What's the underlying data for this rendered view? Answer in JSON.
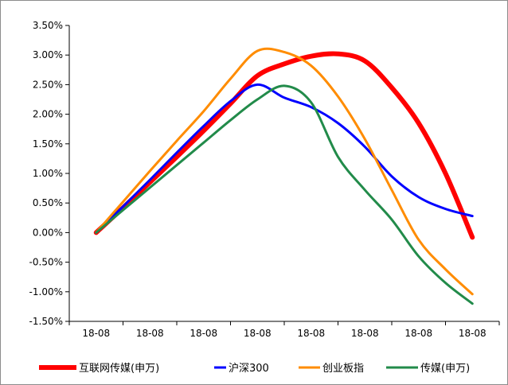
{
  "chart_data": {
    "type": "line",
    "categories": [
      "18-08",
      "18-08",
      "18-08",
      "18-08",
      "18-08",
      "18-08",
      "18-08",
      "18-08"
    ],
    "ylim": [
      -1.5,
      3.5
    ],
    "yticks": [
      "3.50%",
      "3.00%",
      "2.50%",
      "2.00%",
      "1.50%",
      "1.00%",
      "0.50%",
      "0.00%",
      "-0.50%",
      "-1.00%",
      "-1.50%"
    ],
    "grid": false,
    "legend_position": "bottom",
    "series": [
      {
        "name": "互联网传媒(申万)",
        "color": "#ff0000",
        "x": [
          0,
          0.5,
          1,
          1.5,
          2,
          2.5,
          3,
          3.5,
          4,
          4.5,
          5,
          5.5,
          6,
          6.5,
          7
        ],
        "values": [
          0.0,
          0.42,
          0.85,
          1.28,
          1.72,
          2.18,
          2.65,
          2.85,
          2.98,
          3.02,
          2.9,
          2.45,
          1.85,
          1.0,
          -0.08
        ]
      },
      {
        "name": "沪深300",
        "color": "#0000ff",
        "x": [
          0,
          0.5,
          1,
          1.5,
          2,
          2.5,
          3,
          3.5,
          4,
          4.5,
          5,
          5.5,
          6,
          6.5,
          7
        ],
        "values": [
          0.0,
          0.44,
          0.89,
          1.35,
          1.8,
          2.22,
          2.5,
          2.28,
          2.12,
          1.85,
          1.45,
          0.95,
          0.6,
          0.4,
          0.28
        ]
      },
      {
        "name": "创业板指",
        "color": "#ff8c00",
        "x": [
          0,
          0.5,
          1,
          1.5,
          2,
          2.5,
          3,
          3.5,
          4,
          4.5,
          5,
          5.5,
          6,
          6.5,
          7
        ],
        "values": [
          0.0,
          0.52,
          1.04,
          1.55,
          2.05,
          2.6,
          3.07,
          3.05,
          2.82,
          2.3,
          1.58,
          0.72,
          -0.12,
          -0.62,
          -1.04
        ]
      },
      {
        "name": "传媒(申万)",
        "color": "#228b4a",
        "x": [
          0,
          0.5,
          1,
          1.5,
          2,
          2.5,
          3,
          3.5,
          4,
          4.5,
          5,
          5.5,
          6,
          6.5,
          7
        ],
        "values": [
          0.0,
          0.38,
          0.76,
          1.14,
          1.52,
          1.9,
          2.25,
          2.48,
          2.2,
          1.28,
          0.72,
          0.22,
          -0.4,
          -0.85,
          -1.2
        ]
      }
    ]
  }
}
